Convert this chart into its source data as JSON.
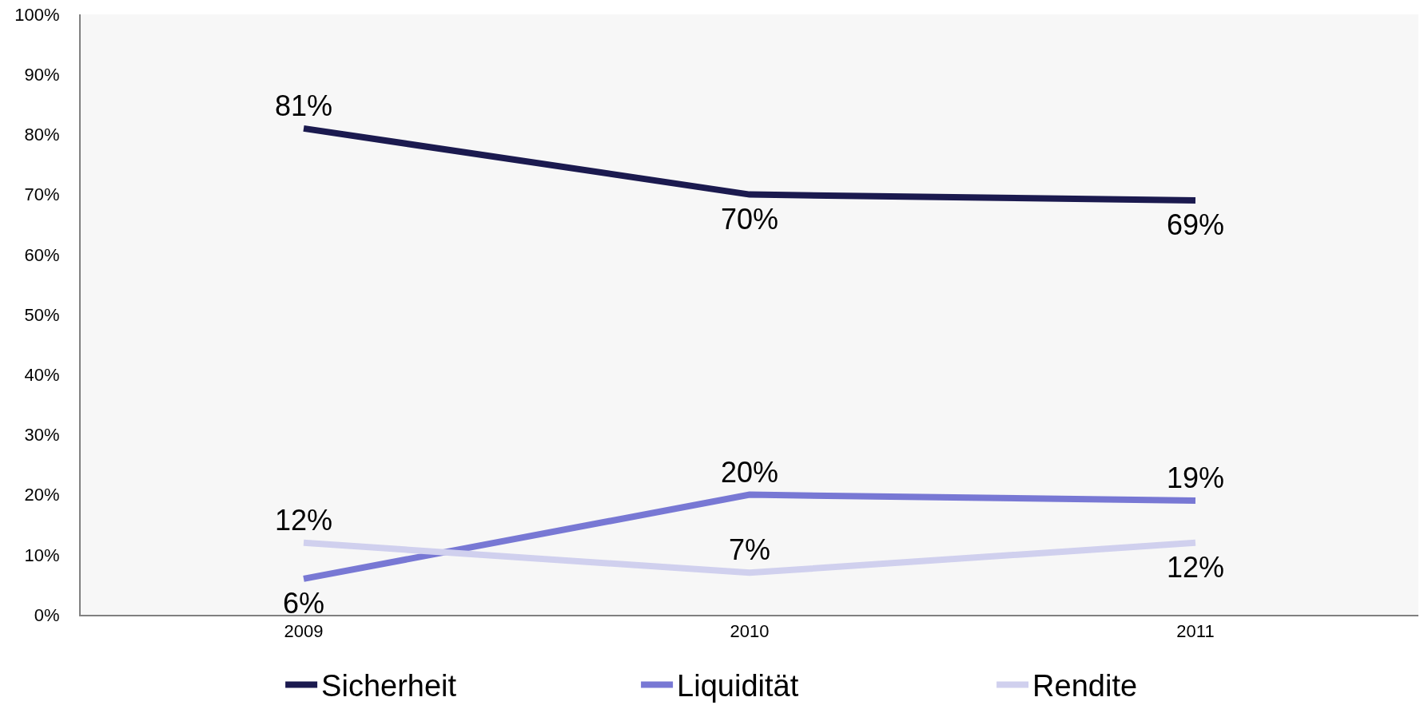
{
  "chart_data": {
    "type": "line",
    "categories": [
      "2009",
      "2010",
      "2011"
    ],
    "series": [
      {
        "name": "Sicherheit",
        "color": "#1b1a4f",
        "values": [
          81,
          70,
          69
        ],
        "value_labels": [
          "81%",
          "70%",
          "69%"
        ]
      },
      {
        "name": "Liquidität",
        "color": "#7878d4",
        "values": [
          6,
          20,
          19
        ],
        "value_labels": [
          "6%",
          "20%",
          "19%"
        ]
      },
      {
        "name": "Rendite",
        "color": "#d0d0ee",
        "values": [
          12,
          7,
          12
        ],
        "value_labels": [
          "12%",
          "7%",
          "12%"
        ]
      }
    ],
    "ylim": [
      0,
      100
    ],
    "yticks": [
      {
        "value": 0,
        "label": "0%"
      },
      {
        "value": 10,
        "label": "10%"
      },
      {
        "value": 20,
        "label": "20%"
      },
      {
        "value": 30,
        "label": "30%"
      },
      {
        "value": 40,
        "label": "40%"
      },
      {
        "value": 50,
        "label": "50%"
      },
      {
        "value": 60,
        "label": "60%"
      },
      {
        "value": 70,
        "label": "70%"
      },
      {
        "value": 80,
        "label": "80%"
      },
      {
        "value": 90,
        "label": "90%"
      },
      {
        "value": 100,
        "label": "100%"
      }
    ],
    "legend": "bottom"
  }
}
